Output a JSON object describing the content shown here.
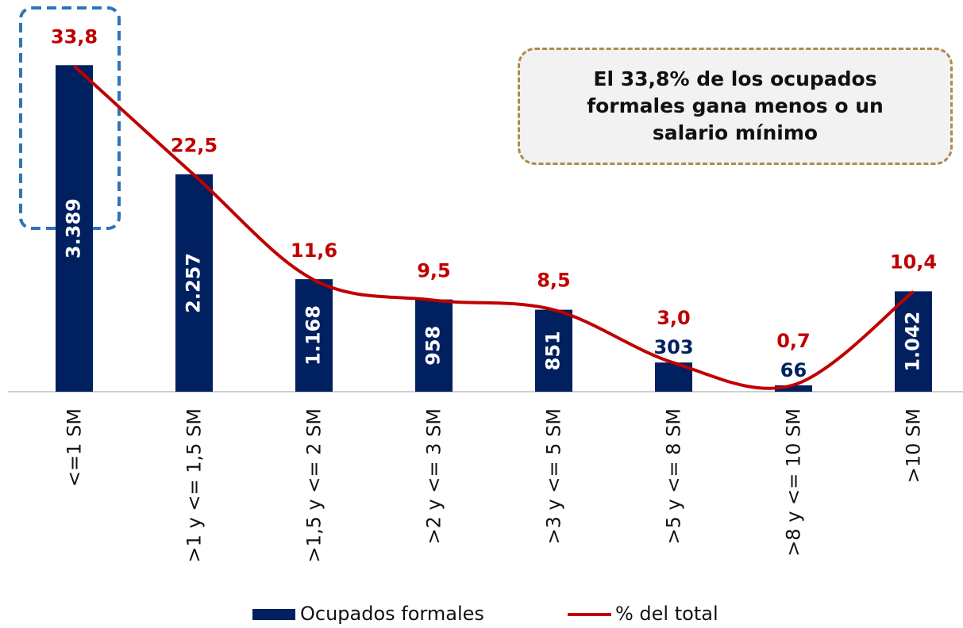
{
  "chart_data": {
    "type": "bar",
    "annotation": "El 33,8% de los ocupados formales gana menos o un salario mínimo",
    "categories": [
      "<=1 SM",
      ">1 y <= 1,5 SM",
      ">1,5 y <= 2 SM",
      ">2 y <= 3 SM",
      ">3 y <= 5 SM",
      ">5 y <= 8 SM",
      ">8 y <= 10 SM",
      ">10 SM"
    ],
    "series": [
      {
        "name": "Ocupados formales",
        "type": "bar",
        "color": "#002060",
        "values": [
          3389,
          2257,
          1168,
          958,
          851,
          303,
          66,
          1042
        ],
        "value_labels": [
          "3.389",
          "2.257",
          "1.168",
          "958",
          "851",
          "303",
          "66",
          "1.042"
        ]
      },
      {
        "name": "% del total",
        "type": "line",
        "axis": "y2",
        "color": "#c00000",
        "values": [
          33.8,
          22.5,
          11.6,
          9.5,
          8.5,
          3.0,
          0.7,
          10.4
        ],
        "value_labels": [
          "33,8",
          "22,5",
          "11,6",
          "9,5",
          "8,5",
          "3,0",
          "0,7",
          "10,4"
        ]
      }
    ],
    "ylim": [
      0,
      4000
    ],
    "y2lim": [
      0,
      40
    ],
    "legend": "bottom"
  }
}
